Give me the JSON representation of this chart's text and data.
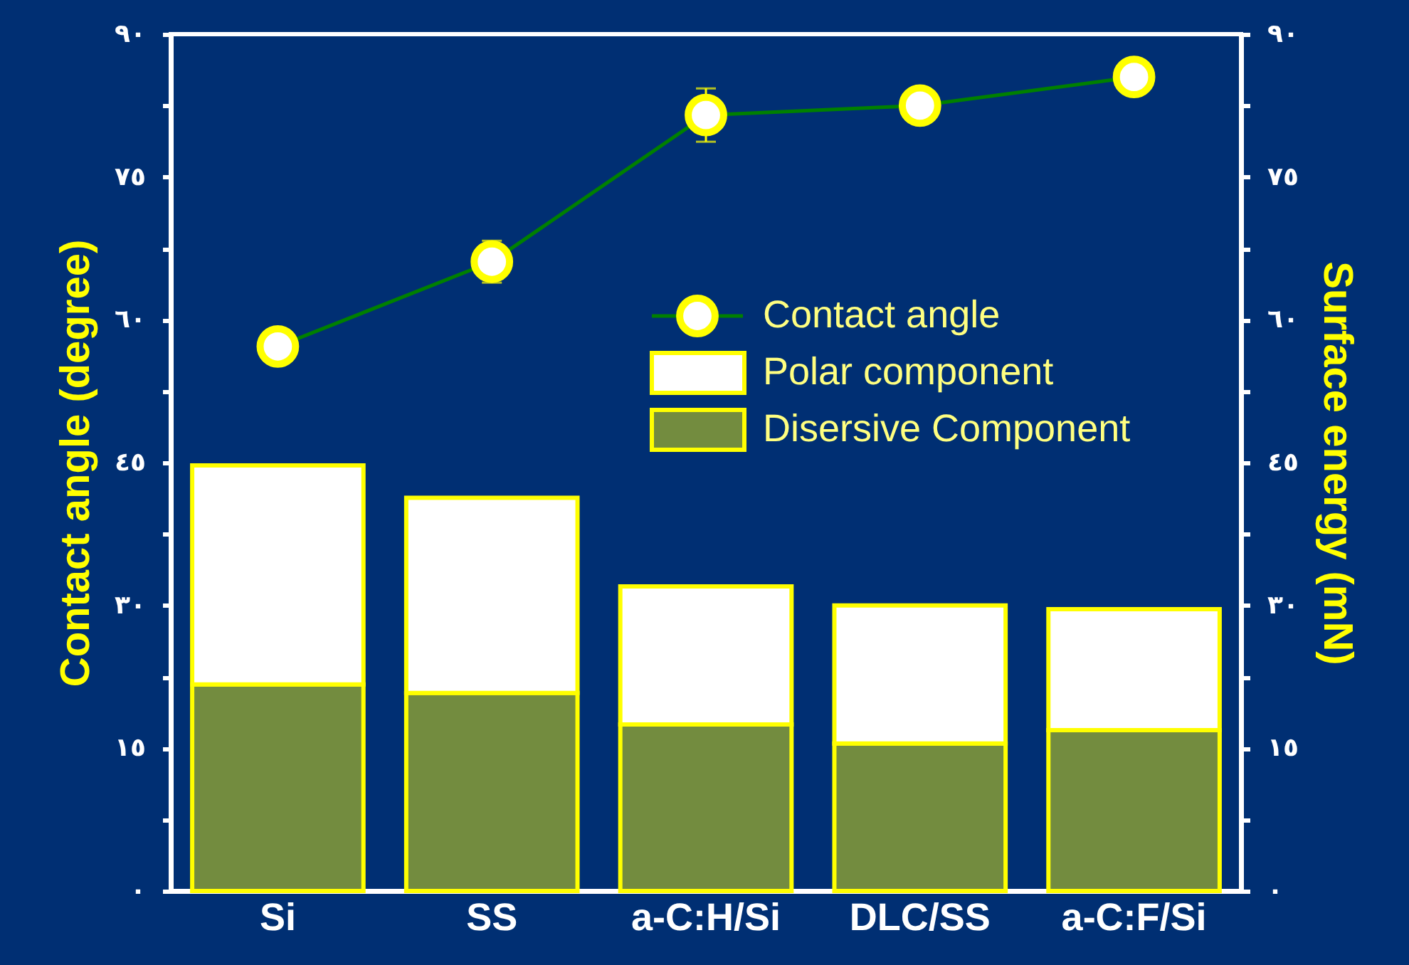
{
  "chart_data": {
    "type": "bar",
    "categories": [
      "Si",
      "SS",
      "a-C:H/Si",
      "DLC/SS",
      "a-C:F/Si"
    ],
    "ylabel": "Contact angle (degree)",
    "y2label": "Surface energy (mN)",
    "ylim": [
      0,
      90
    ],
    "yticks": [
      {
        "value": 0,
        "label": "٠"
      },
      {
        "value": 7.5,
        "label": null
      },
      {
        "value": 15,
        "label": "١٥"
      },
      {
        "value": 22.5,
        "label": null
      },
      {
        "value": 30,
        "label": "٣٠"
      },
      {
        "value": 37.5,
        "label": null
      },
      {
        "value": 45,
        "label": "٤٥"
      },
      {
        "value": 52.5,
        "label": null
      },
      {
        "value": 60,
        "label": "٦٠"
      },
      {
        "value": 67.5,
        "label": null
      },
      {
        "value": 75,
        "label": "٧٥"
      },
      {
        "value": 82.5,
        "label": null
      },
      {
        "value": 90,
        "label": "٩٠"
      }
    ],
    "y2lim": [
      0,
      90
    ],
    "y2ticks": [
      {
        "value": 0,
        "label": "٠"
      },
      {
        "value": 7.5,
        "label": null
      },
      {
        "value": 15,
        "label": "١٥"
      },
      {
        "value": 22.5,
        "label": null
      },
      {
        "value": 30,
        "label": "٣٠"
      },
      {
        "value": 37.5,
        "label": null
      },
      {
        "value": 45,
        "label": "٤٥"
      },
      {
        "value": 52.5,
        "label": null
      },
      {
        "value": 60,
        "label": "٦٠"
      },
      {
        "value": 67.5,
        "label": null
      },
      {
        "value": 75,
        "label": "٧٥"
      },
      {
        "value": 82.5,
        "label": null
      },
      {
        "value": 90,
        "label": "٩٠"
      }
    ],
    "stacked": true,
    "legend": "right",
    "grid": false,
    "marker": "circle",
    "series": [
      {
        "name": "Disersive Component",
        "type": "bar",
        "axis": "y2",
        "color": "#ffff00",
        "values": [
          21.7,
          20.8,
          17.5,
          15.5,
          16.9
        ]
      },
      {
        "name": "Polar component",
        "type": "bar",
        "axis": "y2",
        "color": "#ffffff",
        "values": [
          23.0,
          20.5,
          14.5,
          14.5,
          12.7
        ]
      },
      {
        "name": "Contact angle",
        "type": "line",
        "color": "#008000",
        "values": [
          57.2,
          66.1,
          81.5,
          82.5,
          85.5
        ],
        "errors": [
          null,
          2.2,
          2.8,
          1.3,
          1.7
        ]
      }
    ]
  }
}
